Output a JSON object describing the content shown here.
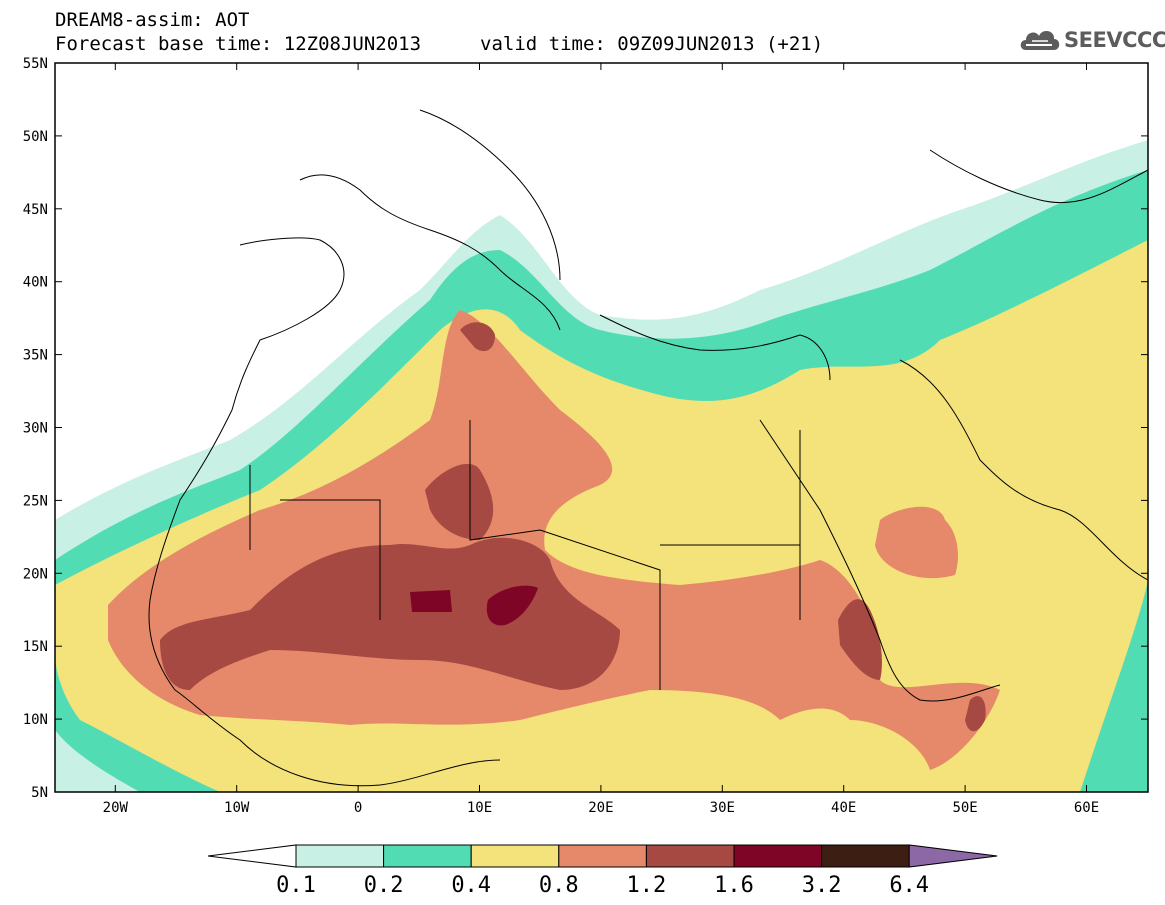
{
  "header": {
    "title_line1": "DREAM8-assim: AOT",
    "title_line2": "Forecast base time: 12Z08JUN2013",
    "valid_time": "valid time: 09Z09JUN2013 (+21)",
    "logo_text": "SEEVCCC"
  },
  "axes": {
    "lat_labels": [
      "55N",
      "50N",
      "45N",
      "40N",
      "35N",
      "30N",
      "25N",
      "20N",
      "15N",
      "10N",
      "5N"
    ],
    "lon_labels": [
      "20W",
      "10W",
      "0",
      "10E",
      "20E",
      "30E",
      "40E",
      "50E",
      "60E"
    ]
  },
  "colorbar": {
    "colors": [
      "#ffffff",
      "#c8f0e4",
      "#52dcb4",
      "#f4e27a",
      "#e6896a",
      "#a64942",
      "#7e0526",
      "#3c1f12",
      "#8c68a6"
    ],
    "labels": [
      "0.1",
      "0.2",
      "0.4",
      "0.8",
      "1.2",
      "1.6",
      "3.2",
      "6.4"
    ]
  },
  "legend_colors": {
    "lt01": "#ffffff",
    "b01_02": "#c8f0e4",
    "b02_04": "#52dcb4",
    "b04_08": "#f4e27a",
    "b08_12": "#e6896a",
    "b12_16": "#a64942",
    "b16_32": "#7e0526",
    "b32_64": "#3c1f12",
    "gt64": "#8c68a6"
  }
}
